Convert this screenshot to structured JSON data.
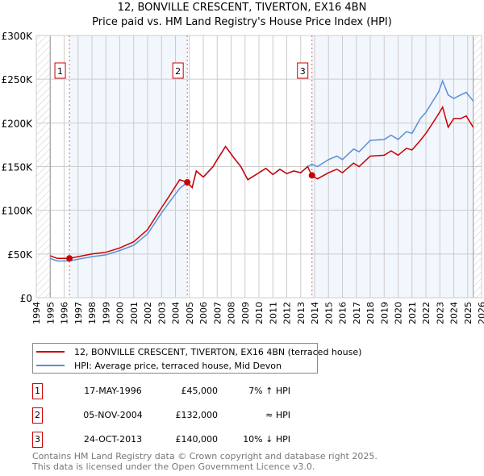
{
  "chart_data": {
    "type": "line",
    "title": "12, BONVILLE CRESCENT, TIVERTON, EX16 4BN",
    "subtitle": "Price paid vs. HM Land Registry's House Price Index (HPI)",
    "xlim": [
      1994,
      2026
    ],
    "ylim": [
      0,
      300000
    ],
    "x_ticks": [
      "1994",
      "1995",
      "1996",
      "1997",
      "1998",
      "1999",
      "2000",
      "2001",
      "2002",
      "2003",
      "2004",
      "2005",
      "2006",
      "2007",
      "2008",
      "2009",
      "2010",
      "2011",
      "2012",
      "2013",
      "2014",
      "2015",
      "2016",
      "2017",
      "2018",
      "2019",
      "2020",
      "2021",
      "2022",
      "2023",
      "2024",
      "2025",
      "2026"
    ],
    "y_ticks": [
      {
        "v": 0,
        "label": "£0"
      },
      {
        "v": 50000,
        "label": "£50K"
      },
      {
        "v": 100000,
        "label": "£100K"
      },
      {
        "v": 150000,
        "label": "£150K"
      },
      {
        "v": 200000,
        "label": "£200K"
      },
      {
        "v": 250000,
        "label": "£250K"
      },
      {
        "v": 300000,
        "label": "£300K"
      }
    ],
    "grid": true,
    "data_range": [
      1995.0,
      2025.4
    ],
    "series": [
      {
        "name": "12, BONVILLE CRESCENT, TIVERTON, EX16 4BN (terraced house)",
        "color": "#cc0000",
        "points": [
          [
            1995,
            48000
          ],
          [
            1995.5,
            45000
          ],
          [
            1996.38,
            45000
          ],
          [
            1997,
            47000
          ],
          [
            1998,
            50000
          ],
          [
            1999,
            52000
          ],
          [
            2000,
            57000
          ],
          [
            2001,
            64000
          ],
          [
            2002,
            78000
          ],
          [
            2003,
            103000
          ],
          [
            2003.5,
            115000
          ],
          [
            2004.3,
            135000
          ],
          [
            2004.85,
            132000
          ],
          [
            2005.2,
            126000
          ],
          [
            2005.5,
            145000
          ],
          [
            2006,
            138000
          ],
          [
            2006.7,
            150000
          ],
          [
            2007,
            158000
          ],
          [
            2007.6,
            173000
          ],
          [
            2008.2,
            160000
          ],
          [
            2008.7,
            150000
          ],
          [
            2009.2,
            135000
          ],
          [
            2010,
            143000
          ],
          [
            2010.5,
            148000
          ],
          [
            2011,
            141000
          ],
          [
            2011.5,
            147000
          ],
          [
            2012,
            142000
          ],
          [
            2012.5,
            145000
          ],
          [
            2013,
            143000
          ],
          [
            2013.5,
            150000
          ],
          [
            2013.8,
            140000
          ],
          [
            2014.2,
            136000
          ],
          [
            2015,
            143000
          ],
          [
            2015.6,
            147000
          ],
          [
            2016,
            143000
          ],
          [
            2016.8,
            154000
          ],
          [
            2017.2,
            150000
          ],
          [
            2018,
            162000
          ],
          [
            2019,
            163000
          ],
          [
            2019.5,
            168000
          ],
          [
            2020,
            163000
          ],
          [
            2020.6,
            171000
          ],
          [
            2021,
            169000
          ],
          [
            2021.6,
            180000
          ],
          [
            2022,
            188000
          ],
          [
            2022.5,
            200000
          ],
          [
            2022.9,
            210000
          ],
          [
            2023.2,
            218000
          ],
          [
            2023.6,
            195000
          ],
          [
            2024,
            205000
          ],
          [
            2024.5,
            205000
          ],
          [
            2024.9,
            208000
          ],
          [
            2025.4,
            195000
          ]
        ]
      },
      {
        "name": "HPI: Average price, terraced house, Mid Devon",
        "color": "#5b8fd6",
        "points": [
          [
            1995,
            45000
          ],
          [
            1995.5,
            42000
          ],
          [
            1996.38,
            42000
          ],
          [
            1997,
            44000
          ],
          [
            1998,
            47000
          ],
          [
            1999,
            49000
          ],
          [
            2000,
            54000
          ],
          [
            2001,
            60000
          ],
          [
            2002,
            73000
          ],
          [
            2003,
            97000
          ],
          [
            2003.5,
            108000
          ],
          [
            2004.3,
            125000
          ],
          [
            2004.85,
            132000
          ],
          [
            2005.2,
            126000
          ],
          [
            2005.5,
            145000
          ],
          [
            2006,
            138000
          ],
          [
            2006.7,
            150000
          ],
          [
            2007,
            158000
          ],
          [
            2007.6,
            173000
          ],
          [
            2008.2,
            160000
          ],
          [
            2008.7,
            150000
          ],
          [
            2009.2,
            135000
          ],
          [
            2010,
            143000
          ],
          [
            2010.5,
            148000
          ],
          [
            2011,
            141000
          ],
          [
            2011.5,
            147000
          ],
          [
            2012,
            142000
          ],
          [
            2012.5,
            145000
          ],
          [
            2013,
            143000
          ],
          [
            2013.5,
            150000
          ],
          [
            2013.8,
            153000
          ],
          [
            2014.2,
            150000
          ],
          [
            2015,
            158000
          ],
          [
            2015.6,
            162000
          ],
          [
            2016,
            158000
          ],
          [
            2016.8,
            170000
          ],
          [
            2017.2,
            167000
          ],
          [
            2018,
            180000
          ],
          [
            2019,
            181000
          ],
          [
            2019.5,
            186000
          ],
          [
            2020,
            181000
          ],
          [
            2020.6,
            190000
          ],
          [
            2021,
            188000
          ],
          [
            2021.6,
            205000
          ],
          [
            2022,
            212000
          ],
          [
            2022.5,
            225000
          ],
          [
            2022.9,
            235000
          ],
          [
            2023.2,
            248000
          ],
          [
            2023.6,
            232000
          ],
          [
            2024,
            228000
          ],
          [
            2024.5,
            232000
          ],
          [
            2024.9,
            235000
          ],
          [
            2025.4,
            225000
          ]
        ]
      }
    ],
    "sales": [
      {
        "id": "1",
        "x": 1996.38,
        "y": 45000
      },
      {
        "id": "2",
        "x": 2004.85,
        "y": 132000
      },
      {
        "id": "3",
        "x": 2013.81,
        "y": 140000
      }
    ]
  },
  "legend": {
    "property": "12, BONVILLE CRESCENT, TIVERTON, EX16 4BN (terraced house)",
    "hpi": "HPI: Average price, terraced house, Mid Devon"
  },
  "transactions": [
    {
      "num": "1",
      "date": "17-MAY-1996",
      "price": "£45,000",
      "hpi": "7% ↑ HPI"
    },
    {
      "num": "2",
      "date": "05-NOV-2004",
      "price": "£132,000",
      "hpi": "≈ HPI"
    },
    {
      "num": "3",
      "date": "24-OCT-2013",
      "price": "£140,000",
      "hpi": "10% ↓ HPI"
    }
  ],
  "footer": {
    "line1": "Contains HM Land Registry data © Crown copyright and database right 2025.",
    "line2": "This data is licensed under the Open Government Licence v3.0."
  }
}
